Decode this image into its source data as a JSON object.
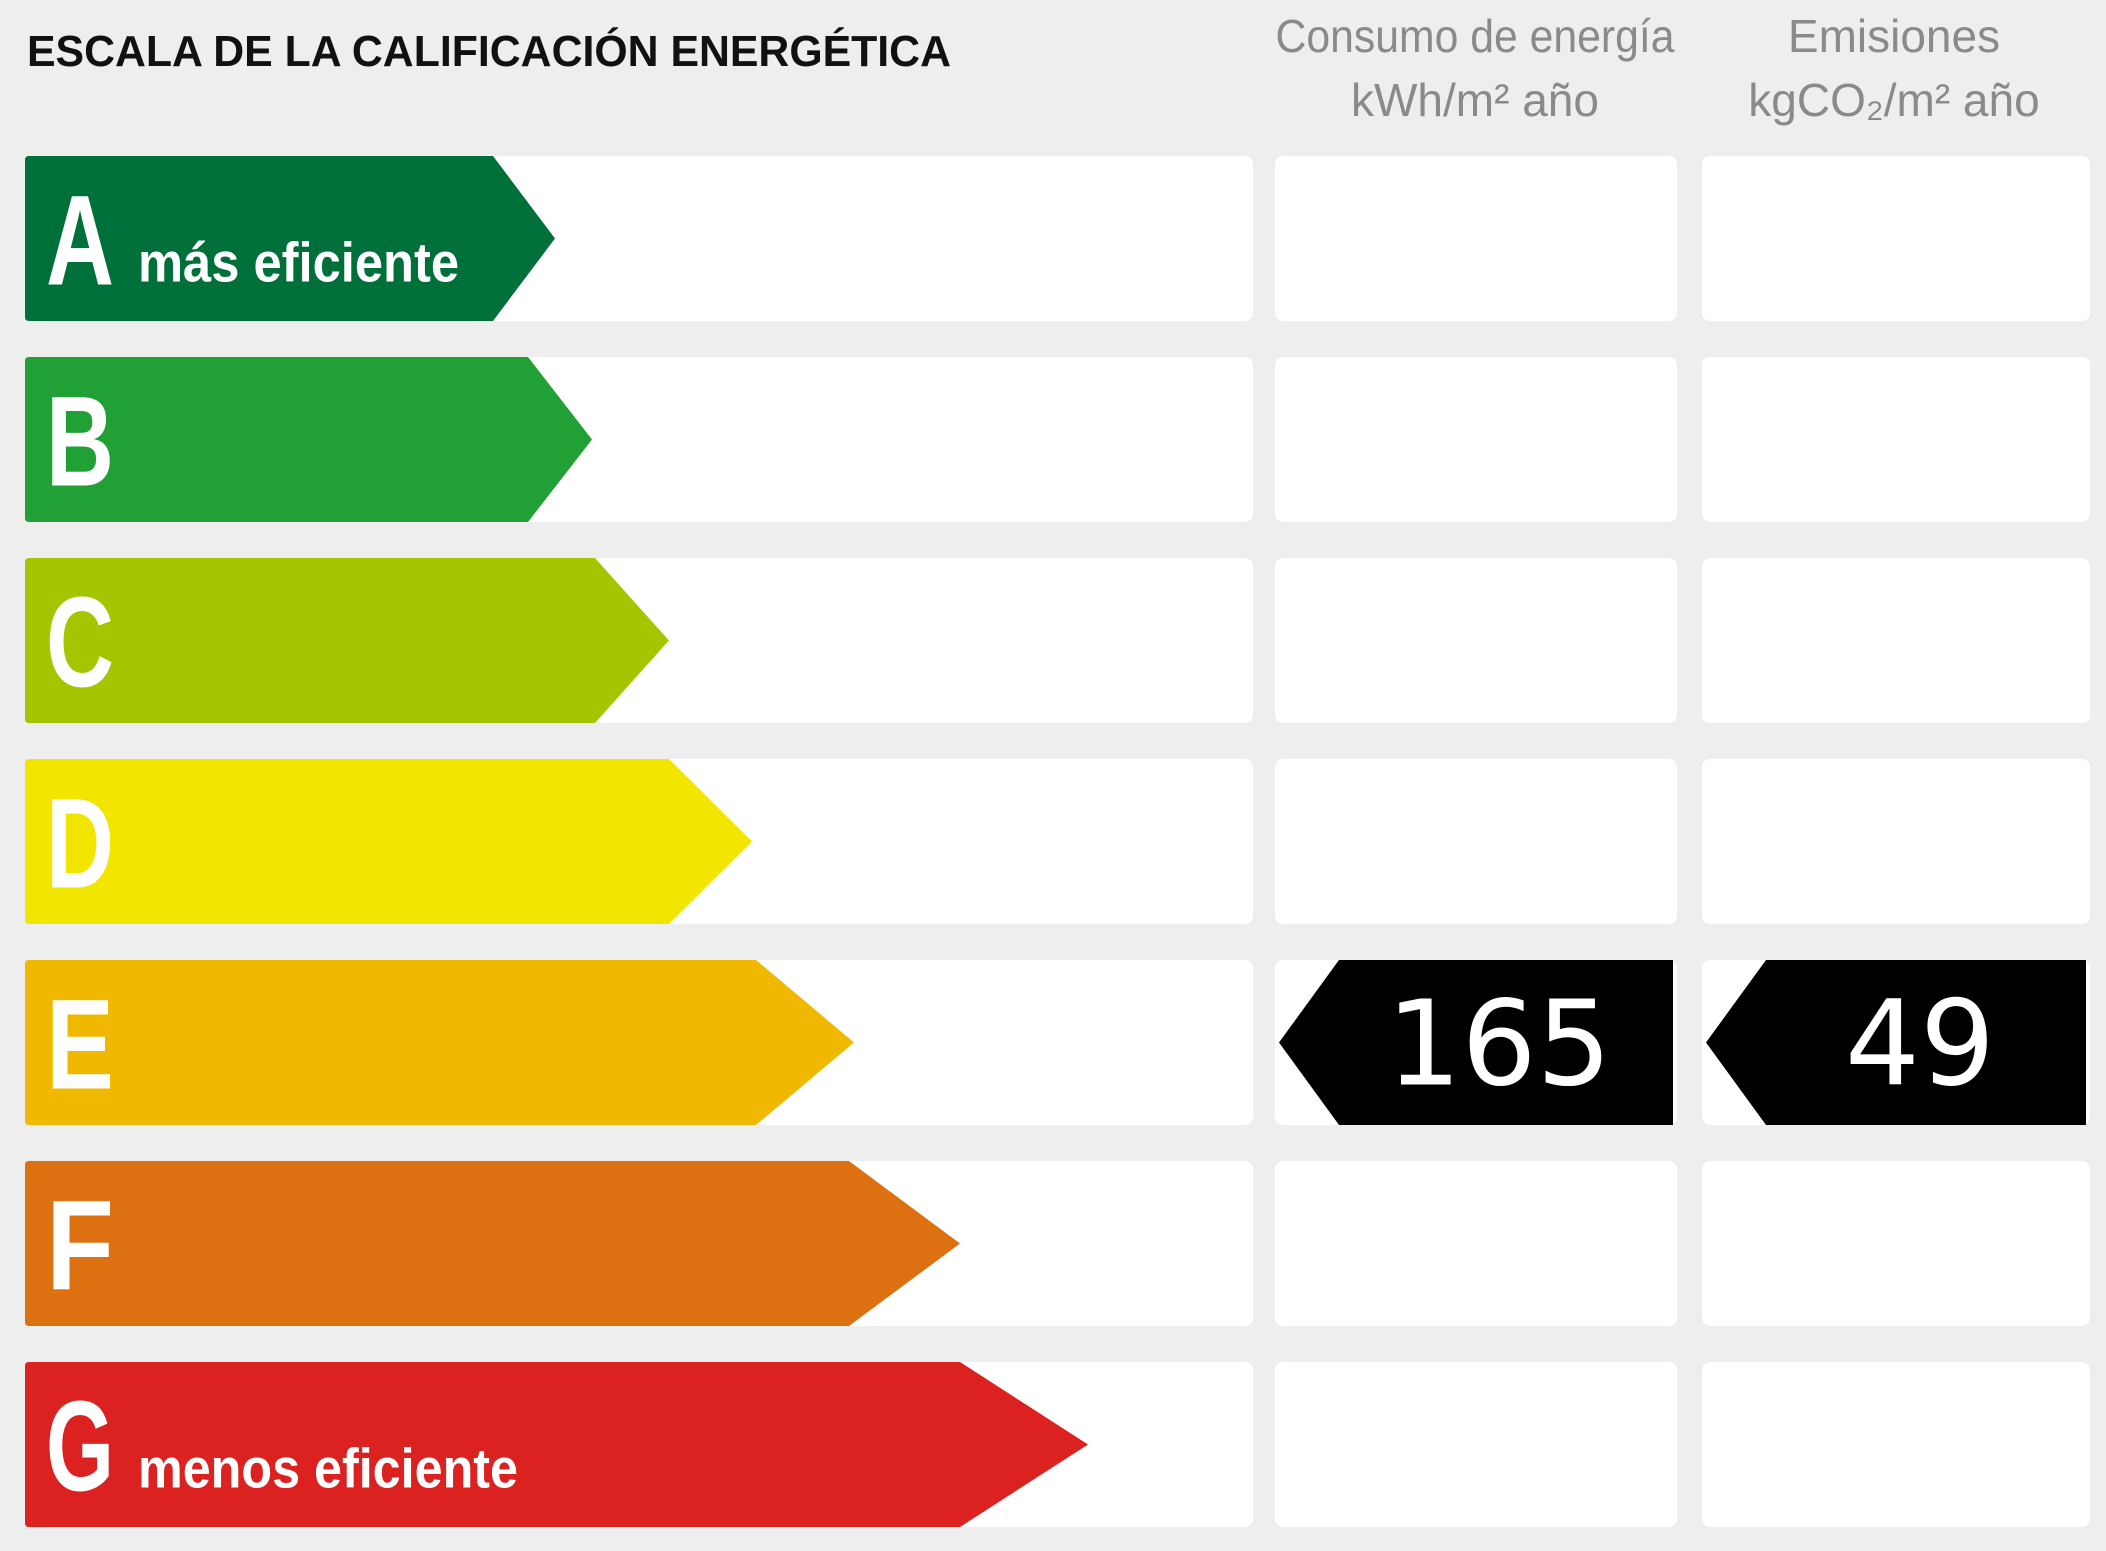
{
  "title": "ESCALA DE LA CALIFICACIÓN ENERGÉTICA",
  "columns": {
    "energy": {
      "label": "Consumo de energía",
      "unit": "kWh/m² año"
    },
    "emissions": {
      "label": "Emisiones",
      "unit": "kgCO₂/m² año"
    }
  },
  "rows": [
    {
      "letter": "A",
      "label": "más eficiente",
      "color": "#00703a"
    },
    {
      "letter": "B",
      "color": "#21a035"
    },
    {
      "letter": "C",
      "color": "#a4c500"
    },
    {
      "letter": "D",
      "color": "#f2e500"
    },
    {
      "letter": "E",
      "color": "#f0b800",
      "energy": 165,
      "emissions": 49
    },
    {
      "letter": "F",
      "color": "#dd7111"
    },
    {
      "letter": "G",
      "label": "menos eficiente",
      "color": "#dc2121"
    }
  ]
}
